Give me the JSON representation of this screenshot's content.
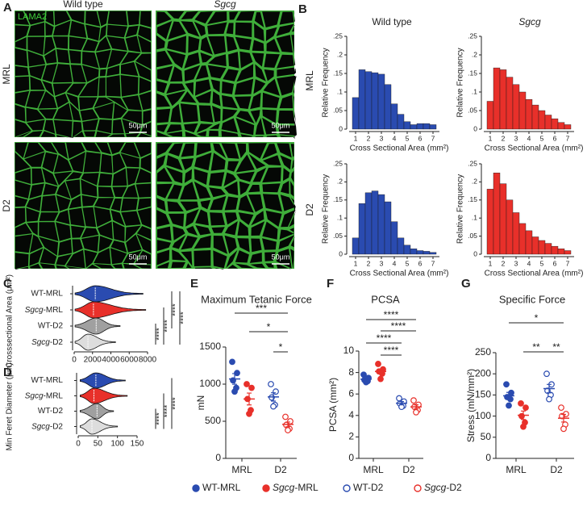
{
  "panel_labels": [
    "A",
    "B",
    "C",
    "D",
    "E",
    "F",
    "G"
  ],
  "panel_a": {
    "columns": [
      "Wild type",
      "Sgcg"
    ],
    "rows": [
      "MRL",
      "D2"
    ],
    "stain": "LAMA2",
    "scale_bar": "50μm"
  },
  "panel_b": {
    "columns": [
      "Wild type",
      "Sgcg"
    ],
    "rows": [
      "MRL",
      "D2"
    ]
  },
  "legend": {
    "items": [
      {
        "name": "WT-MRL",
        "color": "#2a4bb0",
        "filled": true
      },
      {
        "name": "Sgcg-MRL",
        "color": "#e8302a",
        "filled": true
      },
      {
        "name": "WT-D2",
        "color": "#2a4bb0",
        "filled": false
      },
      {
        "name": "Sgcg-D2",
        "color": "#e8302a",
        "filled": false
      }
    ]
  },
  "chart_data": [
    {
      "type": "histogram",
      "xlabel": "Cross Sectional Area (mm²)",
      "ylabel": "Relative Frequency",
      "color": "#2a4bb0",
      "bins": [
        0.75,
        1.25,
        1.75,
        2.25,
        2.75,
        3.25,
        3.75,
        4.25,
        4.75,
        5.25,
        5.75,
        6.25,
        6.75,
        7.25
      ],
      "values": [
        0.085,
        0.16,
        0.155,
        0.152,
        0.148,
        0.12,
        0.068,
        0.04,
        0.02,
        0.012,
        0.015,
        0.015,
        0.012
      ],
      "xlim": [
        0.5,
        7.5
      ],
      "xticks": [
        1,
        2,
        3,
        4,
        5,
        6,
        7
      ],
      "ylim": [
        0,
        0.25
      ],
      "yticks": [
        0,
        {
          "value": 0.05,
          "label": ".05"
        },
        {
          "value": 0.1,
          "label": ".1"
        },
        {
          "value": 0.15,
          "label": ".15"
        },
        {
          "value": 0.2,
          "label": ".2"
        },
        {
          "value": 0.25,
          "label": ".25"
        }
      ]
    },
    {
      "type": "histogram",
      "xlabel": "Cross Sectional Area (mm²)",
      "ylabel": "Relative Frequency",
      "color": "#e8302a",
      "bins": [
        0.75,
        1.25,
        1.75,
        2.25,
        2.75,
        3.25,
        3.75,
        4.25,
        4.75,
        5.25,
        5.75,
        6.25,
        6.75,
        7.25
      ],
      "values": [
        0.075,
        0.165,
        0.16,
        0.14,
        0.12,
        0.1,
        0.08,
        0.065,
        0.05,
        0.038,
        0.028,
        0.018,
        0.012
      ],
      "xlim": [
        0.5,
        7.5
      ],
      "xticks": [
        1,
        2,
        3,
        4,
        5,
        6,
        7
      ],
      "ylim": [
        0,
        0.25
      ],
      "yticks": [
        0,
        {
          "value": 0.05,
          "label": ".05"
        },
        {
          "value": 0.1,
          "label": ".1"
        },
        {
          "value": 0.15,
          "label": ".15"
        },
        {
          "value": 0.2,
          "label": ".2"
        },
        {
          "value": 0.25,
          "label": ".25"
        }
      ]
    },
    {
      "type": "histogram",
      "xlabel": "Cross Sectional Area (mm²)",
      "ylabel": "Relative Frequency",
      "color": "#2a4bb0",
      "bins": [
        0.75,
        1.25,
        1.75,
        2.25,
        2.75,
        3.25,
        3.75,
        4.25,
        4.75,
        5.25,
        5.75,
        6.25,
        6.75,
        7.25
      ],
      "values": [
        0.045,
        0.14,
        0.17,
        0.175,
        0.165,
        0.145,
        0.09,
        0.045,
        0.025,
        0.015,
        0.01,
        0.008,
        0.005
      ],
      "xlim": [
        0.5,
        7.5
      ],
      "xticks": [
        1,
        2,
        3,
        4,
        5,
        6,
        7
      ],
      "ylim": [
        0,
        0.25
      ],
      "yticks": [
        0,
        {
          "value": 0.05,
          "label": ".05"
        },
        {
          "value": 0.1,
          "label": ".1"
        },
        {
          "value": 0.15,
          "label": ".15"
        },
        {
          "value": 0.2,
          "label": ".2"
        },
        {
          "value": 0.25,
          "label": ".25"
        }
      ]
    },
    {
      "type": "histogram",
      "xlabel": "Cross Sectional Area (mm²)",
      "ylabel": "Relative Frequency",
      "color": "#e8302a",
      "bins": [
        0.75,
        1.25,
        1.75,
        2.25,
        2.75,
        3.25,
        3.75,
        4.25,
        4.75,
        5.25,
        5.75,
        6.25,
        6.75,
        7.25
      ],
      "values": [
        0.18,
        0.225,
        0.195,
        0.15,
        0.115,
        0.085,
        0.065,
        0.048,
        0.038,
        0.03,
        0.022,
        0.015,
        0.01
      ],
      "xlim": [
        0.5,
        7.5
      ],
      "xticks": [
        1,
        2,
        3,
        4,
        5,
        6,
        7
      ],
      "ylim": [
        0,
        0.25
      ],
      "yticks": [
        0,
        {
          "value": 0.05,
          "label": ".05"
        },
        {
          "value": 0.1,
          "label": ".1"
        },
        {
          "value": 0.15,
          "label": ".15"
        },
        {
          "value": 0.2,
          "label": ".2"
        },
        {
          "value": 0.25,
          "label": ".25"
        }
      ]
    },
    {
      "type": "violin",
      "xlabel": "Crosssectional Area (μm²)",
      "categories": [
        "WT-MRL",
        "Sgcg-MRL",
        "WT-D2",
        "Sgcg-D2"
      ],
      "mins": [
        100,
        100,
        100,
        100
      ],
      "medians": [
        2300,
        2100,
        2400,
        1500
      ],
      "maxes": [
        7500,
        7800,
        5000,
        4500
      ],
      "colors": [
        "#2a4bb0",
        "#e8302a",
        "#a0a0a0",
        "#dddddd"
      ],
      "xlim": [
        0,
        8000
      ],
      "xticks": [
        0,
        2000,
        4000,
        6000,
        8000
      ],
      "significance": [
        "****",
        "****",
        "****",
        "****"
      ]
    },
    {
      "type": "violin",
      "xlabel": "Min Feret Diameter (μm)",
      "categories": [
        "WT-MRL",
        "Sgcg-MRL",
        "WT-D2",
        "Sgcg-D2"
      ],
      "mins": [
        5,
        5,
        5,
        5
      ],
      "medians": [
        45,
        40,
        48,
        35
      ],
      "maxes": [
        120,
        125,
        90,
        100
      ],
      "colors": [
        "#2a4bb0",
        "#e8302a",
        "#a0a0a0",
        "#dddddd"
      ],
      "xlim": [
        0,
        150
      ],
      "xticks": [
        0,
        50,
        100,
        150
      ],
      "significance": [
        "****",
        "****",
        "****"
      ]
    },
    {
      "type": "strip",
      "title": "Maximum Tetanic Force",
      "ylabel": "mN",
      "categories": [
        "MRL",
        "D2"
      ],
      "series": [
        {
          "values": [
            1300,
            1150,
            1050,
            950,
            900
          ],
          "mean": 1070,
          "sem": 72
        },
        {
          "values": [
            1000,
            950,
            800,
            650,
            600
          ],
          "mean": 800,
          "sem": 80
        },
        {
          "values": [
            1000,
            900,
            820,
            720,
            700
          ],
          "mean": 828,
          "sem": 56
        },
        {
          "values": [
            560,
            500,
            450,
            400,
            380
          ],
          "mean": 458,
          "sem": 32
        }
      ],
      "ylim": [
        0,
        1500
      ],
      "yticks": [
        0,
        500,
        1000,
        1500
      ],
      "significance": [
        "***",
        "*",
        "*"
      ]
    },
    {
      "type": "strip",
      "title": "PCSA",
      "ylabel": "PCSA (mm²)",
      "categories": [
        "MRL",
        "D2"
      ],
      "series": [
        {
          "values": [
            7.8,
            7.5,
            7.3,
            7.2,
            7.1
          ],
          "mean": 7.38,
          "sem": 0.13
        },
        {
          "values": [
            8.8,
            8.3,
            8.1,
            7.9,
            7.4
          ],
          "mean": 8.1,
          "sem": 0.23
        },
        {
          "values": [
            5.6,
            5.3,
            5.1,
            4.9,
            4.8
          ],
          "mean": 5.14,
          "sem": 0.15
        },
        {
          "values": [
            5.4,
            5.0,
            4.8,
            4.5,
            4.3
          ],
          "mean": 4.8,
          "sem": 0.19
        }
      ],
      "ylim": [
        0,
        10
      ],
      "yticks": [
        0,
        2,
        4,
        6,
        8,
        10
      ],
      "significance": [
        "****",
        "****",
        "****",
        "****"
      ]
    },
    {
      "type": "strip",
      "title": "Specific Force",
      "ylabel": "Stress (mN/mm²)",
      "categories": [
        "MRL",
        "D2"
      ],
      "series": [
        {
          "values": [
            175,
            155,
            145,
            140,
            125
          ],
          "mean": 148,
          "sem": 8
        },
        {
          "values": [
            130,
            120,
            100,
            85,
            75
          ],
          "mean": 102,
          "sem": 10
        },
        {
          "values": [
            200,
            175,
            160,
            150,
            140
          ],
          "mean": 165,
          "sem": 10
        },
        {
          "values": [
            120,
            105,
            100,
            80,
            70
          ],
          "mean": 95,
          "sem": 9
        }
      ],
      "ylim": [
        0,
        250
      ],
      "yticks": [
        0,
        50,
        100,
        150,
        200,
        250
      ],
      "significance": [
        "*",
        "**",
        "**"
      ]
    }
  ]
}
